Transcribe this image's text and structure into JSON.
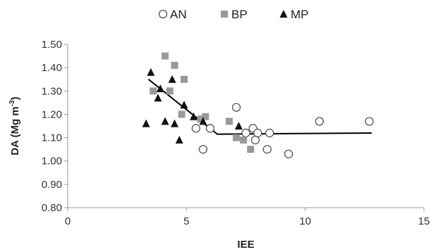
{
  "chart_data": {
    "type": "scatter",
    "xlabel": "IEE",
    "ylabel_main": "DA (Mg m",
    "ylabel_sup": "-3",
    "ylabel_close": ")",
    "xlim": [
      0,
      15
    ],
    "ylim": [
      0.8,
      1.5
    ],
    "xticks": [
      "0",
      "5",
      "10",
      "15"
    ],
    "yticks": [
      "0.80",
      "0.90",
      "1.00",
      "1.10",
      "1.20",
      "1.30",
      "1.40",
      "1.50"
    ],
    "legend_position": "top-center",
    "series": [
      {
        "name": "AN",
        "marker": "circle-open",
        "color": "#555555",
        "points": [
          [
            5.4,
            1.14
          ],
          [
            5.7,
            1.05
          ],
          [
            6.0,
            1.14
          ],
          [
            7.1,
            1.23
          ],
          [
            7.5,
            1.12
          ],
          [
            7.8,
            1.14
          ],
          [
            7.9,
            1.09
          ],
          [
            8.0,
            1.12
          ],
          [
            8.4,
            1.05
          ],
          [
            8.5,
            1.12
          ],
          [
            9.3,
            1.03
          ],
          [
            10.6,
            1.17
          ],
          [
            12.7,
            1.17
          ]
        ]
      },
      {
        "name": "BP",
        "marker": "square",
        "color": "#999999",
        "points": [
          [
            3.6,
            1.3
          ],
          [
            4.1,
            1.45
          ],
          [
            4.3,
            1.3
          ],
          [
            4.5,
            1.41
          ],
          [
            4.8,
            1.2
          ],
          [
            4.9,
            1.35
          ],
          [
            5.6,
            1.18
          ],
          [
            5.8,
            1.19
          ],
          [
            6.8,
            1.17
          ],
          [
            7.1,
            1.1
          ],
          [
            7.4,
            1.09
          ],
          [
            7.7,
            1.05
          ]
        ]
      },
      {
        "name": "MP",
        "marker": "triangle",
        "color": "#111111",
        "points": [
          [
            3.3,
            1.16
          ],
          [
            3.5,
            1.38
          ],
          [
            3.8,
            1.27
          ],
          [
            3.9,
            1.31
          ],
          [
            4.1,
            1.17
          ],
          [
            4.4,
            1.35
          ],
          [
            4.5,
            1.16
          ],
          [
            4.7,
            1.09
          ],
          [
            4.9,
            1.24
          ],
          [
            5.3,
            1.19
          ],
          [
            5.7,
            1.17
          ],
          [
            7.2,
            1.15
          ]
        ]
      }
    ],
    "fit_line": {
      "type": "segmented",
      "color": "#000000",
      "points": [
        [
          3.4,
          1.35
        ],
        [
          6.3,
          1.115
        ],
        [
          12.8,
          1.12
        ]
      ]
    }
  }
}
